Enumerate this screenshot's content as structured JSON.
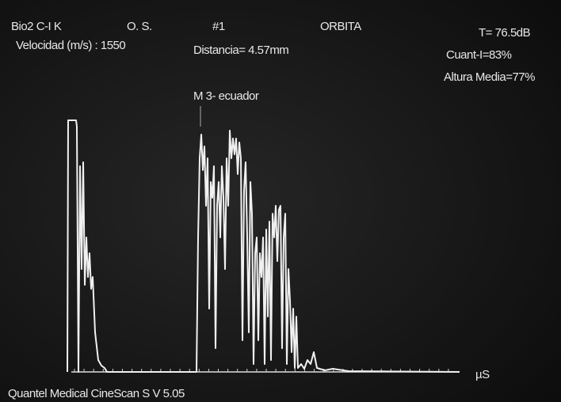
{
  "header": {
    "probe": "Bio2 C-I K",
    "eye": "O. S.",
    "index": "#1",
    "mode": "ORBITA",
    "gain": "T= 76.5dB",
    "velocity": "Velocidad (m/s) : 1550",
    "distance": "Distancia= 4.57mm",
    "cuant": "Cuant-I=83%",
    "altura": "Altura Media=77%"
  },
  "marker": {
    "label": "M 3- ecuador"
  },
  "axis": {
    "unit": "µS"
  },
  "footer": {
    "device": "Quantel Medical CineScan S V 5.05"
  }
}
